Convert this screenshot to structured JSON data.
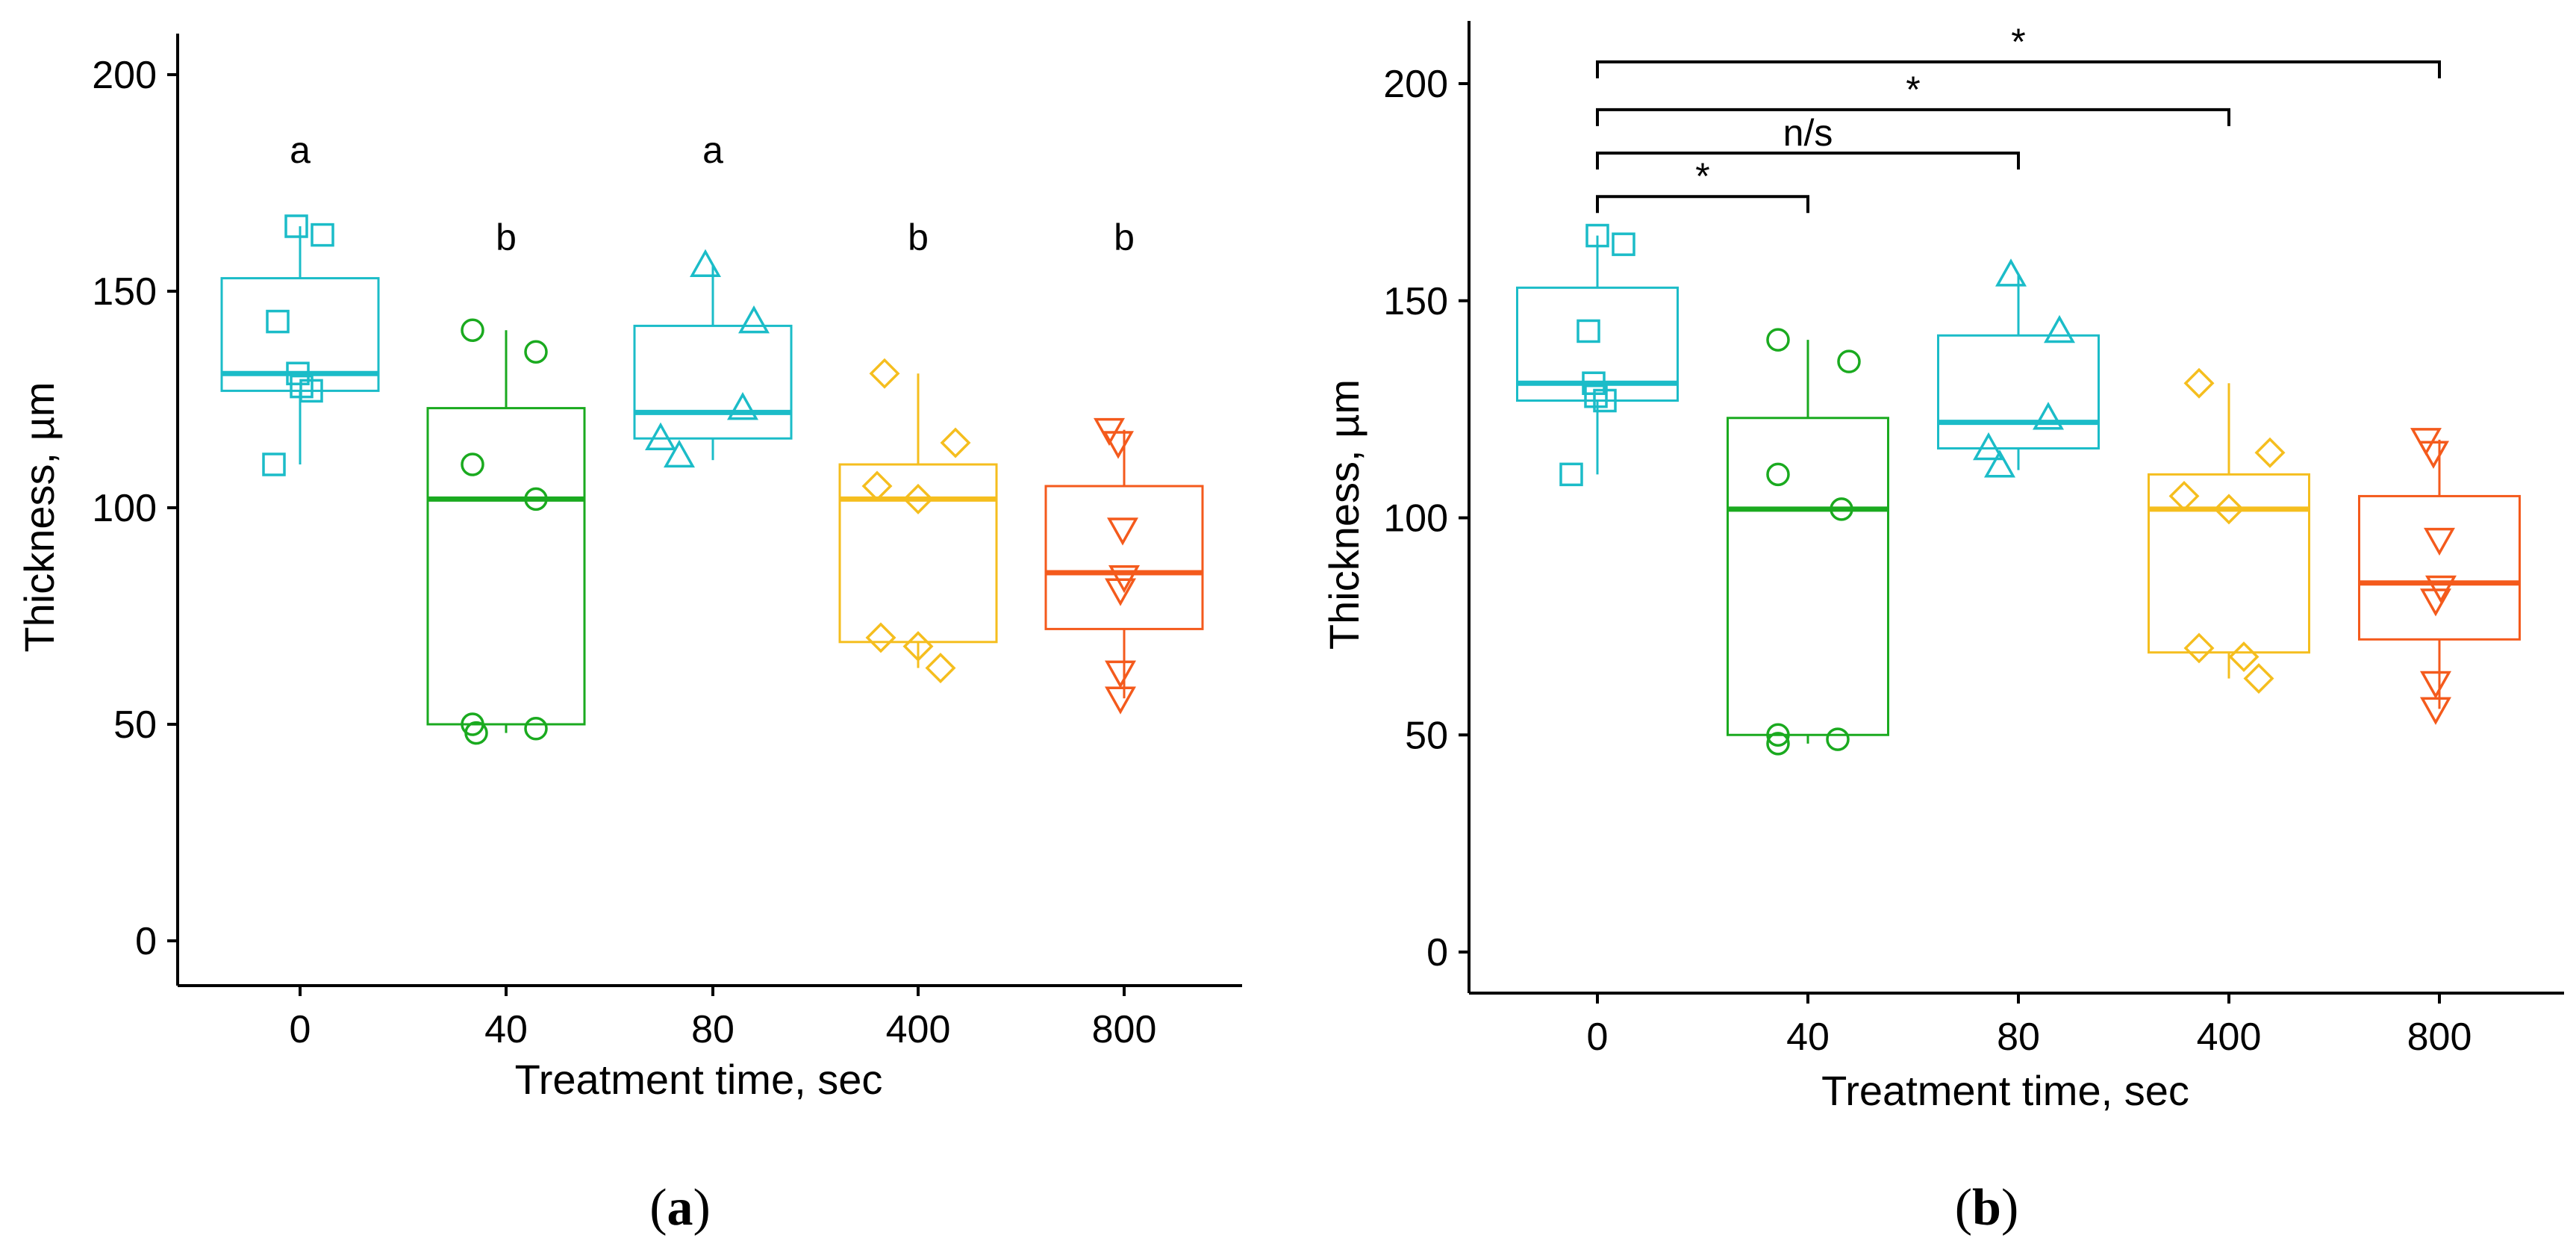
{
  "chart_data": [
    {
      "type": "box",
      "panel_label": {
        "open": "(",
        "letter": "a",
        "close": ")"
      },
      "xlabel": "Treatment time, sec",
      "ylabel": "Thickness, µm",
      "ylim": [
        -10,
        210
      ],
      "yticks": [
        0,
        50,
        100,
        150,
        200
      ],
      "categories": [
        "0",
        "40",
        "80",
        "400",
        "800"
      ],
      "group_letters": [
        "a",
        "b",
        "a",
        "b",
        "b"
      ],
      "boxes": [
        {
          "category": "0",
          "color": "#1bbcc8",
          "marker": "square",
          "q1": 127,
          "median": 131,
          "q3": 153,
          "whisker_low": 110,
          "whisker_high": 165,
          "points": [
            165,
            163,
            143,
            131,
            128,
            127,
            110
          ]
        },
        {
          "category": "40",
          "color": "#1aaa1f",
          "marker": "circle",
          "q1": 50,
          "median": 102,
          "q3": 123,
          "whisker_low": 48,
          "whisker_high": 141,
          "points": [
            141,
            136,
            110,
            102,
            50,
            49,
            48
          ]
        },
        {
          "category": "80",
          "color": "#1bbcc8",
          "marker": "triangle-up",
          "q1": 116,
          "median": 122,
          "q3": 142,
          "whisker_low": 111,
          "whisker_high": 156,
          "points": [
            156,
            143,
            123,
            116,
            112
          ]
        },
        {
          "category": "400",
          "color": "#f5be1e",
          "marker": "diamond",
          "q1": 69,
          "median": 102,
          "q3": 110,
          "whisker_low": 63,
          "whisker_high": 131,
          "points": [
            131,
            115,
            105,
            102,
            70,
            68,
            63
          ]
        },
        {
          "category": "800",
          "color": "#f45a1c",
          "marker": "triangle-down",
          "q1": 72,
          "median": 85,
          "q3": 105,
          "whisker_low": 56,
          "whisker_high": 118,
          "points": [
            118,
            115,
            95,
            84,
            81,
            62,
            56
          ]
        }
      ]
    },
    {
      "type": "box",
      "panel_label": {
        "open": "(",
        "letter": "b",
        "close": ")"
      },
      "xlabel": "Treatment time, sec",
      "ylabel": "Thickness, µm",
      "ylim": [
        -10,
        212
      ],
      "yticks": [
        0,
        50,
        100,
        150,
        200
      ],
      "categories": [
        "0",
        "40",
        "80",
        "400",
        "800"
      ],
      "comparisons": [
        {
          "from": "0",
          "to": "40",
          "label": "*",
          "y": 174
        },
        {
          "from": "0",
          "to": "80",
          "label": "n/s",
          "y": 184
        },
        {
          "from": "0",
          "to": "400",
          "label": "*",
          "y": 194
        },
        {
          "from": "0",
          "to": "800",
          "label": "*",
          "y": 205
        }
      ],
      "boxes": [
        {
          "category": "0",
          "color": "#1bbcc8",
          "marker": "square",
          "q1": 127,
          "median": 131,
          "q3": 153,
          "whisker_low": 110,
          "whisker_high": 165,
          "points": [
            165,
            163,
            143,
            131,
            128,
            127,
            110
          ]
        },
        {
          "category": "40",
          "color": "#1aaa1f",
          "marker": "circle",
          "q1": 50,
          "median": 102,
          "q3": 123,
          "whisker_low": 48,
          "whisker_high": 141,
          "points": [
            141,
            136,
            110,
            102,
            50,
            49,
            48
          ]
        },
        {
          "category": "80",
          "color": "#1bbcc8",
          "marker": "triangle-up",
          "q1": 116,
          "median": 122,
          "q3": 142,
          "whisker_low": 111,
          "whisker_high": 156,
          "points": [
            156,
            143,
            123,
            116,
            112
          ]
        },
        {
          "category": "400",
          "color": "#f5be1e",
          "marker": "diamond",
          "q1": 69,
          "median": 102,
          "q3": 110,
          "whisker_low": 63,
          "whisker_high": 131,
          "points": [
            131,
            115,
            105,
            102,
            70,
            68,
            63
          ]
        },
        {
          "category": "800",
          "color": "#f45a1c",
          "marker": "triangle-down",
          "q1": 72,
          "median": 85,
          "q3": 105,
          "whisker_low": 56,
          "whisker_high": 118,
          "points": [
            118,
            115,
            95,
            84,
            81,
            62,
            56
          ]
        }
      ]
    }
  ]
}
